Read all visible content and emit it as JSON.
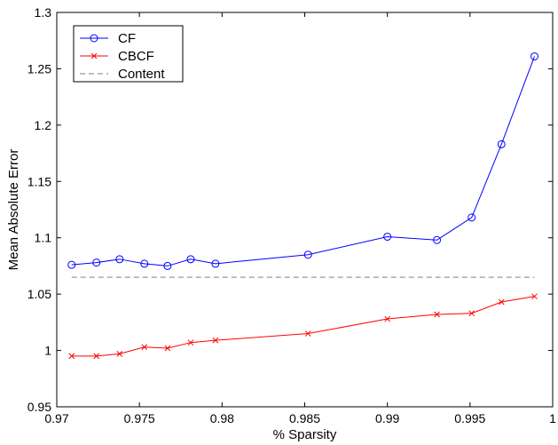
{
  "chart_data": {
    "type": "line",
    "title": "",
    "xlabel": "% Sparsity",
    "ylabel": "Mean Absolute Error",
    "xlim": [
      0.97,
      1.0
    ],
    "ylim": [
      0.95,
      1.3
    ],
    "x_ticks": [
      0.97,
      0.975,
      0.98,
      0.985,
      0.99,
      0.995,
      1.0
    ],
    "x_tick_labels": [
      "0.97",
      "0.975",
      "0.98",
      "0.985",
      "0.99",
      "0.995",
      "1"
    ],
    "y_ticks": [
      0.95,
      1.0,
      1.05,
      1.1,
      1.15,
      1.2,
      1.25,
      1.3
    ],
    "y_tick_labels": [
      "0.95",
      "1",
      "1.05",
      "1.1",
      "1.15",
      "1.2",
      "1.25",
      "1.3"
    ],
    "grid": false,
    "legend_position": "top-left",
    "series": [
      {
        "name": "CF",
        "color": "#0000ff",
        "line_style": "solid",
        "marker": "circle",
        "x": [
          0.9709,
          0.9724,
          0.9738,
          0.9753,
          0.9767,
          0.9781,
          0.9796,
          0.9852,
          0.99,
          0.993,
          0.9951,
          0.9969,
          0.9989
        ],
        "y": [
          1.076,
          1.078,
          1.081,
          1.077,
          1.075,
          1.081,
          1.077,
          1.085,
          1.101,
          1.098,
          1.118,
          1.183,
          1.261
        ]
      },
      {
        "name": "CBCF",
        "color": "#ff0000",
        "line_style": "solid",
        "marker": "x",
        "x": [
          0.9709,
          0.9724,
          0.9738,
          0.9753,
          0.9767,
          0.9781,
          0.9796,
          0.9852,
          0.99,
          0.993,
          0.9951,
          0.9969,
          0.9989
        ],
        "y": [
          0.995,
          0.995,
          0.997,
          1.003,
          1.002,
          1.007,
          1.009,
          1.015,
          1.028,
          1.032,
          1.033,
          1.043,
          1.048
        ]
      },
      {
        "name": "Content",
        "color": "#808080",
        "line_style": "dashed",
        "marker": "none",
        "x": [
          0.9709,
          0.9989
        ],
        "y": [
          1.065,
          1.065
        ]
      }
    ]
  }
}
